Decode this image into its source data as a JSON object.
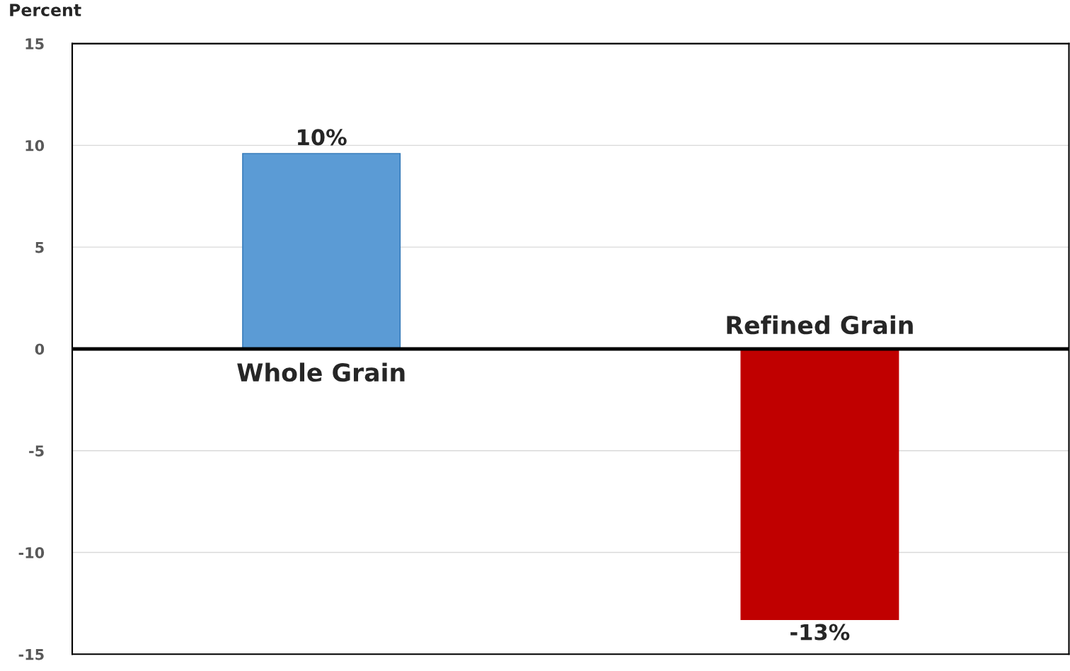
{
  "chart_data": {
    "type": "bar",
    "ylabel": "Percent",
    "categories": [
      "Whole Grain",
      "Refined Grain"
    ],
    "values": [
      9.6,
      -13.3
    ],
    "colors": [
      "#5b9bd5",
      "#c00000"
    ],
    "value_labels": [
      "10%",
      "-13%"
    ],
    "ylim": [
      -15,
      15
    ],
    "yticks": [
      -15,
      -10,
      -5,
      0,
      5,
      10,
      15
    ],
    "grid": "y"
  }
}
